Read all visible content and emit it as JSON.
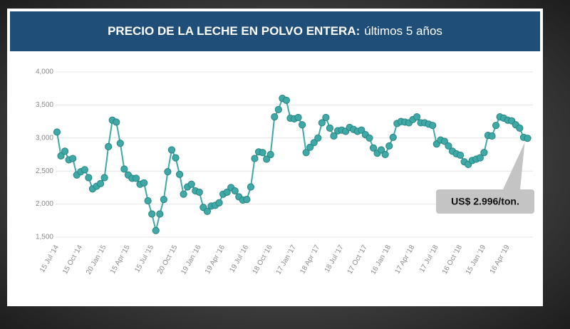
{
  "chart_data": {
    "type": "line",
    "title": "PRECIO DE LA LECHE EN POLVO ENTERA:",
    "subtitle": "últimos 5 años",
    "annotation": "US$ 2.996/ton.",
    "categories": [
      "15 Jul '14",
      null,
      null,
      null,
      null,
      null,
      "15 Oct '14",
      null,
      null,
      null,
      null,
      null,
      "20 Jan '15",
      null,
      null,
      null,
      null,
      null,
      "15 Apr '15",
      null,
      null,
      null,
      null,
      null,
      "15 Jul '15",
      null,
      null,
      null,
      null,
      null,
      "20 Oct '15",
      null,
      null,
      null,
      null,
      null,
      "19 Jan '16",
      null,
      null,
      null,
      null,
      null,
      "19 Apr '16",
      null,
      null,
      null,
      null,
      null,
      "19 Jul '16",
      null,
      null,
      null,
      null,
      null,
      "18 Oct '16",
      null,
      null,
      null,
      null,
      null,
      "17 Jan '17",
      null,
      null,
      null,
      null,
      null,
      "18 Apr '17",
      null,
      null,
      null,
      null,
      null,
      "18 Jul '17",
      null,
      null,
      null,
      null,
      null,
      "17 Oct '17",
      null,
      null,
      null,
      null,
      null,
      "16 Jan '18",
      null,
      null,
      null,
      null,
      null,
      "17 Apr '18",
      null,
      null,
      null,
      null,
      null,
      "17 Jul '18",
      null,
      null,
      null,
      null,
      null,
      "16 Oct '18",
      null,
      null,
      null,
      null,
      null,
      "15 Jan '19",
      null,
      null,
      null,
      null,
      null,
      "16 Apr '19",
      null,
      null,
      null,
      null,
      null
    ],
    "series": [
      {
        "color": "#3ea9a6",
        "values": [
          3090,
          2730,
          2800,
          2670,
          2690,
          2440,
          2490,
          2520,
          2400,
          2230,
          2270,
          2310,
          2400,
          2870,
          3270,
          3240,
          2920,
          2530,
          2440,
          2390,
          2390,
          2300,
          2320,
          2050,
          1850,
          1600,
          1850,
          2070,
          2490,
          2820,
          2700,
          2450,
          2150,
          2260,
          2300,
          2200,
          2180,
          1950,
          1890,
          1970,
          1980,
          2020,
          2150,
          2180,
          2250,
          2200,
          2110,
          2060,
          2070,
          2260,
          2690,
          2790,
          2780,
          2680,
          2750,
          3320,
          3430,
          3600,
          3570,
          3300,
          3290,
          3310,
          3200,
          2780,
          2860,
          2930,
          3000,
          3230,
          3310,
          3150,
          3030,
          3110,
          3120,
          3100,
          3160,
          3130,
          3100,
          3120,
          3050,
          3000,
          2850,
          2770,
          2820,
          2750,
          2880,
          3010,
          3220,
          3250,
          3240,
          3230,
          3280,
          3320,
          3230,
          3230,
          3210,
          3190,
          2910,
          2970,
          2950,
          2880,
          2800,
          2760,
          2740,
          2640,
          2600,
          2660,
          2680,
          2700,
          2780,
          3040,
          3030,
          3190,
          3320,
          3300,
          3270,
          3260,
          3200,
          3150,
          3010,
          2996
        ]
      }
    ],
    "ylim": [
      1500,
      4000
    ],
    "yticks": [
      {
        "value": 1500,
        "label": "1,500"
      },
      {
        "value": 2000,
        "label": "2,000"
      },
      {
        "value": 2500,
        "label": "2,500"
      },
      {
        "value": 3000,
        "label": "3,000"
      },
      {
        "value": 3500,
        "label": "3,500"
      },
      {
        "value": 4000,
        "label": "4,000"
      }
    ],
    "grid": true
  }
}
